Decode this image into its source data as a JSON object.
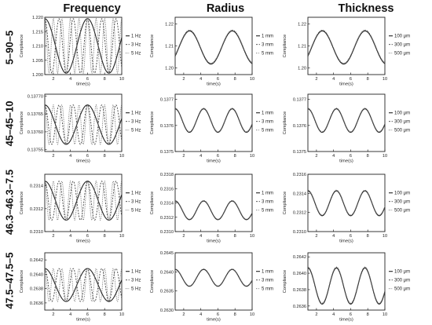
{
  "columns": [
    "Frequency",
    "Radius",
    "Thickness"
  ],
  "rows": [
    "5–90–5",
    "45–45–10",
    "46.3–46.3–7.5",
    "47.5–47.5–5"
  ],
  "chart_data": [
    {
      "type": "line",
      "row": 0,
      "col": 0,
      "xlabel": "time(s)",
      "ylabel": "Compliance",
      "xlim": [
        1,
        10
      ],
      "xticks": [
        2,
        4,
        6,
        8,
        10
      ],
      "ylim": [
        1.2,
        1.22
      ],
      "yticks": [
        1.2,
        1.205,
        1.21,
        1.215,
        1.22
      ],
      "ytick_labels": [
        "1.200",
        "1.205",
        "1.210",
        "1.215",
        "1.220"
      ],
      "mode": "freq",
      "base": 1.21,
      "amp": 0.0095,
      "freqs": [
        0.2,
        0.6,
        1.0
      ],
      "series": [
        {
          "name": "1 Hz"
        },
        {
          "name": "3 Hz"
        },
        {
          "name": "5 Hz"
        }
      ]
    },
    {
      "type": "line",
      "row": 0,
      "col": 1,
      "xlabel": "time(s)",
      "ylabel": "Compliance",
      "xlim": [
        1,
        10
      ],
      "xticks": [
        2,
        4,
        6,
        8,
        10
      ],
      "ylim": [
        1.197,
        1.223
      ],
      "yticks": [
        1.2,
        1.21,
        1.22
      ],
      "ytick_labels": [
        "1.20",
        "1.21",
        "1.22"
      ],
      "mode": "single",
      "base": 1.2095,
      "amp": 0.0075,
      "freq": 0.2,
      "phase": -0.55,
      "series": [
        {
          "name": "1 mm"
        },
        {
          "name": "3 mm"
        },
        {
          "name": "5 mm"
        }
      ]
    },
    {
      "type": "line",
      "row": 0,
      "col": 2,
      "xlabel": "time(s)",
      "ylabel": "Compliance",
      "xlim": [
        1,
        10
      ],
      "xticks": [
        2,
        4,
        6,
        8,
        10
      ],
      "ylim": [
        1.197,
        1.223
      ],
      "yticks": [
        1.2,
        1.21,
        1.22
      ],
      "ytick_labels": [
        "1.20",
        "1.21",
        "1.22"
      ],
      "mode": "single",
      "base": 1.2095,
      "amp": 0.0075,
      "freq": 0.2,
      "phase": -0.55,
      "series": [
        {
          "name": "100 μm"
        },
        {
          "name": "300 μm"
        },
        {
          "name": "500 μm"
        }
      ]
    },
    {
      "type": "line",
      "row": 1,
      "col": 0,
      "xlabel": "time(s)",
      "ylabel": "Compliance",
      "xlim": [
        1,
        10
      ],
      "xticks": [
        2,
        4,
        6,
        8,
        10
      ],
      "ylim": [
        0.137545,
        0.137705
      ],
      "yticks": [
        0.13755,
        0.1376,
        0.13765,
        0.1377
      ],
      "ytick_labels": [
        "0.13755",
        "0.13760",
        "0.13765",
        "0.13770"
      ],
      "mode": "freq",
      "base": 0.13762,
      "amp": 5.5e-05,
      "freqs": [
        0.2,
        0.6,
        1.0
      ],
      "series": [
        {
          "name": "1 Hz"
        },
        {
          "name": "3 Hz"
        },
        {
          "name": "5 Hz"
        }
      ]
    },
    {
      "type": "line",
      "row": 1,
      "col": 1,
      "xlabel": "time(s)",
      "ylabel": "Compliance",
      "xlim": [
        1,
        10
      ],
      "xticks": [
        2,
        4,
        6,
        8,
        10
      ],
      "ylim": [
        0.1375,
        0.13772
      ],
      "yticks": [
        0.1375,
        0.1376,
        0.1377
      ],
      "ytick_labels": [
        "0.1375",
        "0.1376",
        "0.1377"
      ],
      "mode": "single",
      "base": 0.13762,
      "amp": 4.5e-05,
      "freq": 0.3,
      "phase": 1.57,
      "series": [
        {
          "name": "1 mm"
        },
        {
          "name": "3 mm"
        },
        {
          "name": "5 mm"
        }
      ]
    },
    {
      "type": "line",
      "row": 1,
      "col": 2,
      "xlabel": "time(s)",
      "ylabel": "Compliance",
      "xlim": [
        1,
        10
      ],
      "xticks": [
        2,
        4,
        6,
        8,
        10
      ],
      "ylim": [
        0.1375,
        0.13772
      ],
      "yticks": [
        0.1375,
        0.1376,
        0.1377
      ],
      "ytick_labels": [
        "0.1375",
        "0.1376",
        "0.1377"
      ],
      "mode": "single",
      "base": 0.13762,
      "amp": 4.5e-05,
      "freq": 0.3,
      "phase": 1.57,
      "series": [
        {
          "name": "100 μm"
        },
        {
          "name": "300 μm"
        },
        {
          "name": "500 μm"
        }
      ]
    },
    {
      "type": "line",
      "row": 2,
      "col": 0,
      "xlabel": "time(s)",
      "ylabel": "Compliance",
      "xlim": [
        1,
        10
      ],
      "xticks": [
        2,
        4,
        6,
        8,
        10
      ],
      "ylim": [
        0.231,
        0.2315
      ],
      "yticks": [
        0.231,
        0.2312,
        0.2314
      ],
      "ytick_labels": [
        "0.2310",
        "0.2312",
        "0.2314"
      ],
      "mode": "freq",
      "base": 0.23127,
      "amp": 0.00017,
      "freqs": [
        0.2,
        0.6,
        1.0
      ],
      "series": [
        {
          "name": "1 Hz"
        },
        {
          "name": "3 Hz"
        },
        {
          "name": "5 Hz"
        }
      ]
    },
    {
      "type": "line",
      "row": 2,
      "col": 1,
      "xlabel": "time(s)",
      "ylabel": "Compliance",
      "xlim": [
        1,
        10
      ],
      "xticks": [
        2,
        4,
        6,
        8,
        10
      ],
      "ylim": [
        0.231,
        0.2318
      ],
      "yticks": [
        0.231,
        0.2312,
        0.2314,
        0.2316,
        0.2318
      ],
      "ytick_labels": [
        "0.2310",
        "0.2312",
        "0.2314",
        "0.2316",
        "0.2318"
      ],
      "mode": "single",
      "base": 0.2313,
      "amp": 0.00013,
      "freq": 0.3,
      "phase": 1.57,
      "series": [
        {
          "name": "1 mm"
        },
        {
          "name": "3 mm"
        },
        {
          "name": "5 mm"
        }
      ]
    },
    {
      "type": "line",
      "row": 2,
      "col": 2,
      "xlabel": "time(s)",
      "ylabel": "Compliance",
      "xlim": [
        1,
        10
      ],
      "xticks": [
        2,
        4,
        6,
        8,
        10
      ],
      "ylim": [
        0.231,
        0.2316
      ],
      "yticks": [
        0.231,
        0.2312,
        0.2314,
        0.2316
      ],
      "ytick_labels": [
        "0.2310",
        "0.2312",
        "0.2314",
        "0.2316"
      ],
      "mode": "single",
      "base": 0.2313,
      "amp": 0.00013,
      "freq": 0.3,
      "phase": 1.57,
      "series": [
        {
          "name": "100 μm"
        },
        {
          "name": "300 μm"
        },
        {
          "name": "500 μm"
        }
      ]
    },
    {
      "type": "line",
      "row": 3,
      "col": 0,
      "xlabel": "time(s)",
      "ylabel": "Compliance",
      "xlim": [
        1,
        10
      ],
      "xticks": [
        2,
        4,
        6,
        8,
        10
      ],
      "ylim": [
        0.2635,
        0.2643
      ],
      "yticks": [
        0.2636,
        0.2638,
        0.264,
        0.2642
      ],
      "ytick_labels": [
        "0.2636",
        "0.2638",
        "0.2640",
        "0.2642"
      ],
      "mode": "freq",
      "base": 0.26385,
      "amp": 0.00023,
      "freqs": [
        0.2,
        0.6,
        1.0
      ],
      "series": [
        {
          "name": "1 Hz"
        },
        {
          "name": "3 Hz"
        },
        {
          "name": "5 Hz"
        }
      ]
    },
    {
      "type": "line",
      "row": 3,
      "col": 1,
      "xlabel": "time(s)",
      "ylabel": "Compliance",
      "xlim": [
        1,
        10
      ],
      "xticks": [
        2,
        4,
        6,
        8,
        10
      ],
      "ylim": [
        0.263,
        0.2645
      ],
      "yticks": [
        0.263,
        0.2635,
        0.264,
        0.2645
      ],
      "ytick_labels": [
        "0.2630",
        "0.2635",
        "0.2640",
        "0.2645"
      ],
      "mode": "single",
      "base": 0.26385,
      "amp": 0.00022,
      "freq": 0.3,
      "phase": 1.57,
      "series": [
        {
          "name": "1 mm"
        },
        {
          "name": "3 mm"
        },
        {
          "name": "5 mm"
        }
      ]
    },
    {
      "type": "line",
      "row": 3,
      "col": 2,
      "xlabel": "time(s)",
      "ylabel": "Compliance",
      "xlim": [
        1,
        10
      ],
      "xticks": [
        2,
        4,
        6,
        8,
        10
      ],
      "ylim": [
        0.26355,
        0.26425
      ],
      "yticks": [
        0.2636,
        0.2638,
        0.264,
        0.2642
      ],
      "ytick_labels": [
        "0.2636",
        "0.2638",
        "0.2640",
        "0.2642"
      ],
      "mode": "single",
      "base": 0.26385,
      "amp": 0.00022,
      "freq": 0.3,
      "phase": 1.57,
      "series": [
        {
          "name": "100 μm"
        },
        {
          "name": "300 μm"
        },
        {
          "name": "500 μm"
        }
      ]
    }
  ]
}
